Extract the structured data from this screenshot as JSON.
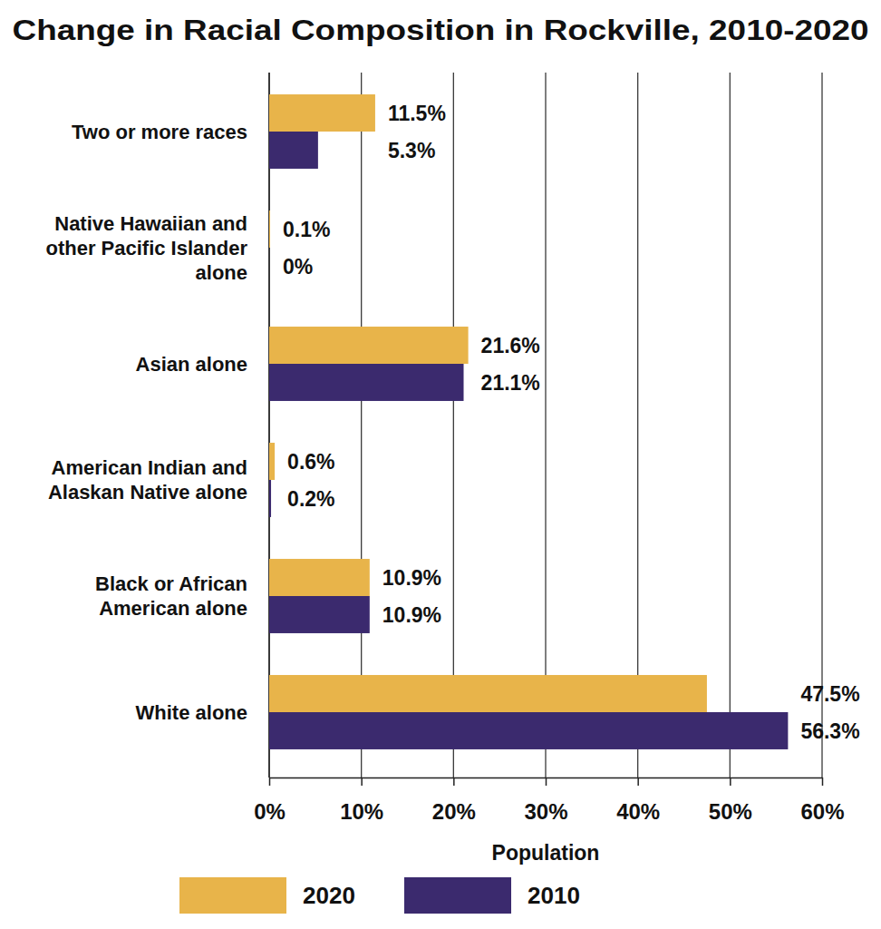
{
  "chart_data": {
    "type": "bar",
    "orientation": "horizontal",
    "title": "Change in Racial Composition in Rockville, 2010-2020",
    "xlabel": "Population",
    "categories": [
      "Two or more races",
      "Native Hawaiian and other Pacific Islander alone",
      "Asian alone",
      "American Indian and Alaskan Native alone",
      "Black or African American alone",
      "White alone"
    ],
    "series": [
      {
        "name": "2020",
        "color": "#e8b44a",
        "values": [
          11.5,
          0.1,
          21.6,
          0.6,
          10.9,
          47.5
        ],
        "value_labels": [
          "11.5%",
          "0.1%",
          "21.6%",
          "0.6%",
          "10.9%",
          "47.5%"
        ]
      },
      {
        "name": "2010",
        "color": "#3b2a6e",
        "values": [
          5.3,
          0,
          21.1,
          0.2,
          10.9,
          56.3
        ],
        "value_labels": [
          "5.3%",
          "0%",
          "21.1%",
          "0.2%",
          "10.9%",
          "56.3%"
        ]
      }
    ],
    "xlim": [
      0,
      60
    ],
    "xticks": [
      {
        "value": 0,
        "label": "0%"
      },
      {
        "value": 10,
        "label": "10%"
      },
      {
        "value": 20,
        "label": "20%"
      },
      {
        "value": 30,
        "label": "30%"
      },
      {
        "value": 40,
        "label": "40%"
      },
      {
        "value": 50,
        "label": "50%"
      },
      {
        "value": 60,
        "label": "60%"
      }
    ],
    "grid": true,
    "data_labels": true,
    "legend": "bottom"
  }
}
